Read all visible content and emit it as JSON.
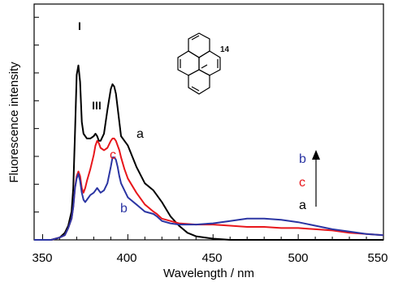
{
  "chart_data": {
    "type": "line",
    "xlabel": "Wavelength / nm",
    "ylabel": "Fluorescence intensity",
    "xlim": [
      345,
      550
    ],
    "ylim": [
      0,
      1.0
    ],
    "x_ticks": [
      "350",
      "400",
      "450",
      "500",
      "550"
    ],
    "y_ticks_labeled": false,
    "grid": false,
    "annotations": {
      "peak_I": "I",
      "peak_III": "III",
      "compound": "14",
      "legend_b": "b",
      "legend_c": "c",
      "legend_a": "a"
    },
    "series": [
      {
        "name": "a",
        "color": "#000000",
        "x": [
          345,
          355,
          360,
          363,
          365,
          367,
          368,
          369,
          370,
          371,
          372,
          373,
          374,
          375,
          376,
          378,
          380,
          381,
          382,
          383,
          384,
          386,
          388,
          390,
          391,
          392,
          393,
          394,
          395,
          396,
          398,
          400,
          405,
          410,
          415,
          417,
          420,
          425,
          430,
          435,
          440,
          450,
          460,
          470,
          480,
          500,
          520,
          550
        ],
        "y": [
          0.0,
          0.0,
          0.01,
          0.03,
          0.06,
          0.12,
          0.22,
          0.45,
          0.7,
          0.74,
          0.67,
          0.5,
          0.45,
          0.44,
          0.43,
          0.43,
          0.44,
          0.45,
          0.44,
          0.42,
          0.42,
          0.45,
          0.55,
          0.64,
          0.66,
          0.65,
          0.62,
          0.56,
          0.5,
          0.44,
          0.42,
          0.4,
          0.31,
          0.24,
          0.21,
          0.19,
          0.16,
          0.1,
          0.06,
          0.03,
          0.015,
          0.005,
          0.0,
          0.0,
          0.0,
          0.0,
          0.0,
          0.0
        ]
      },
      {
        "name": "c",
        "color": "#e8161b",
        "x": [
          345,
          355,
          360,
          363,
          365,
          367,
          368,
          369,
          370,
          371,
          372,
          373,
          374,
          375,
          376,
          378,
          380,
          381,
          382,
          383,
          384,
          386,
          388,
          390,
          391,
          392,
          393,
          394,
          395,
          396,
          398,
          400,
          405,
          410,
          415,
          417,
          420,
          425,
          430,
          440,
          450,
          460,
          470,
          480,
          490,
          500,
          510,
          520,
          530,
          540,
          550
        ],
        "y": [
          0.0,
          0.0,
          0.01,
          0.02,
          0.05,
          0.09,
          0.14,
          0.22,
          0.27,
          0.29,
          0.27,
          0.22,
          0.2,
          0.22,
          0.25,
          0.3,
          0.36,
          0.4,
          0.42,
          0.41,
          0.39,
          0.38,
          0.39,
          0.42,
          0.43,
          0.43,
          0.42,
          0.4,
          0.38,
          0.35,
          0.3,
          0.26,
          0.2,
          0.15,
          0.12,
          0.11,
          0.09,
          0.08,
          0.07,
          0.065,
          0.065,
          0.06,
          0.055,
          0.055,
          0.05,
          0.05,
          0.045,
          0.04,
          0.03,
          0.025,
          0.02
        ]
      },
      {
        "name": "b",
        "color": "#2b35a3",
        "x": [
          345,
          355,
          360,
          363,
          365,
          367,
          368,
          369,
          370,
          371,
          372,
          373,
          374,
          375,
          376,
          378,
          380,
          381,
          382,
          383,
          384,
          386,
          388,
          390,
          391,
          392,
          393,
          394,
          395,
          396,
          398,
          400,
          405,
          410,
          415,
          417,
          420,
          425,
          430,
          440,
          450,
          460,
          470,
          480,
          490,
          500,
          510,
          520,
          530,
          540,
          550
        ],
        "y": [
          0.0,
          0.0,
          0.01,
          0.02,
          0.05,
          0.09,
          0.14,
          0.22,
          0.26,
          0.28,
          0.25,
          0.2,
          0.17,
          0.16,
          0.17,
          0.19,
          0.2,
          0.21,
          0.22,
          0.21,
          0.2,
          0.21,
          0.24,
          0.31,
          0.35,
          0.35,
          0.34,
          0.31,
          0.27,
          0.24,
          0.21,
          0.18,
          0.15,
          0.12,
          0.11,
          0.1,
          0.08,
          0.07,
          0.065,
          0.065,
          0.07,
          0.08,
          0.09,
          0.09,
          0.085,
          0.075,
          0.06,
          0.045,
          0.035,
          0.025,
          0.02
        ]
      }
    ]
  }
}
